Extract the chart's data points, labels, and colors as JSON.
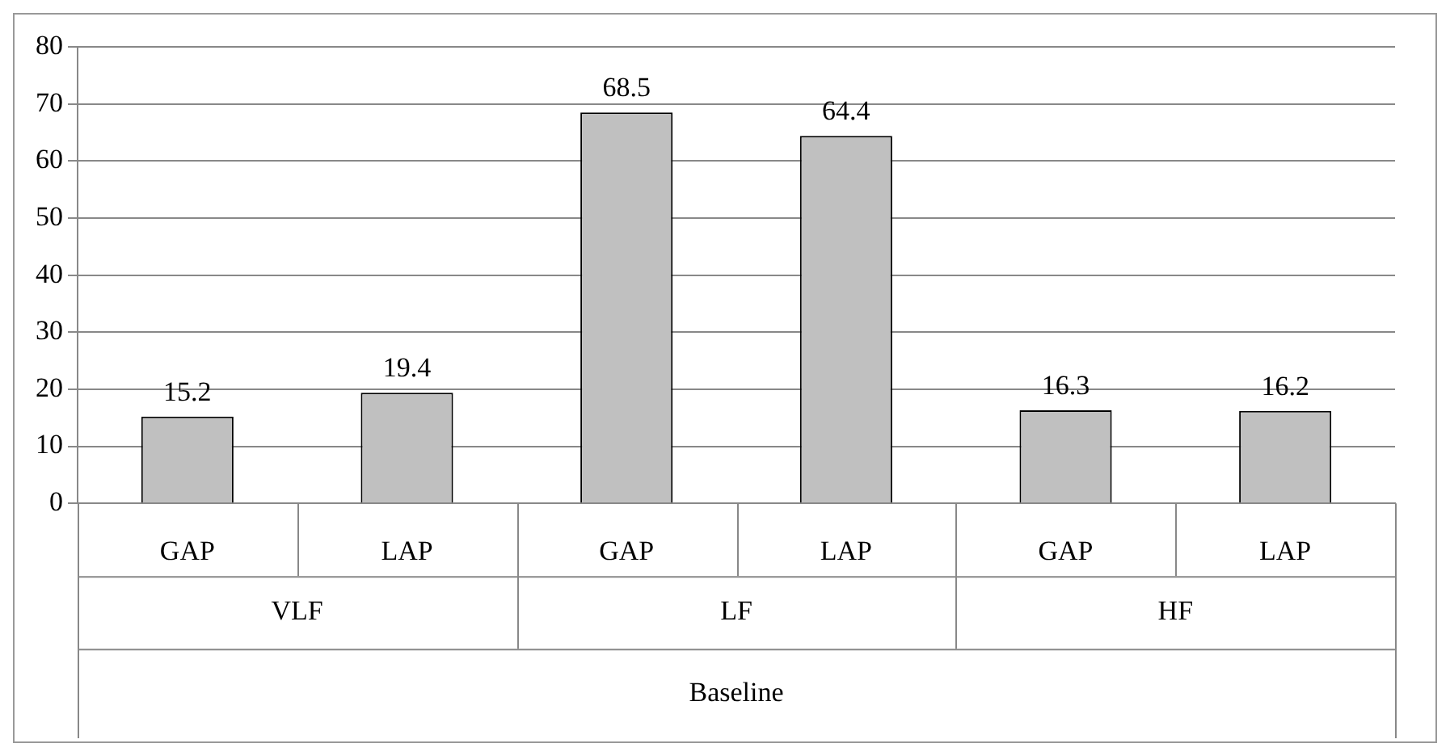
{
  "chart_data": {
    "type": "bar",
    "xlabel": "Baseline",
    "categories": [
      "GAP",
      "LAP",
      "GAP",
      "LAP",
      "GAP",
      "LAP"
    ],
    "values": [
      15.2,
      19.4,
      68.5,
      64.4,
      16.3,
      16.2
    ],
    "color": "#c0c0c0",
    "annotations": [
      "VLF",
      "LF",
      "HF"
    ],
    "ylim": [
      0,
      80
    ],
    "yticks": [
      0,
      10,
      20,
      30,
      40,
      50,
      60,
      70,
      80
    ],
    "grid": "y",
    "data_labels": true,
    "legend": false
  }
}
